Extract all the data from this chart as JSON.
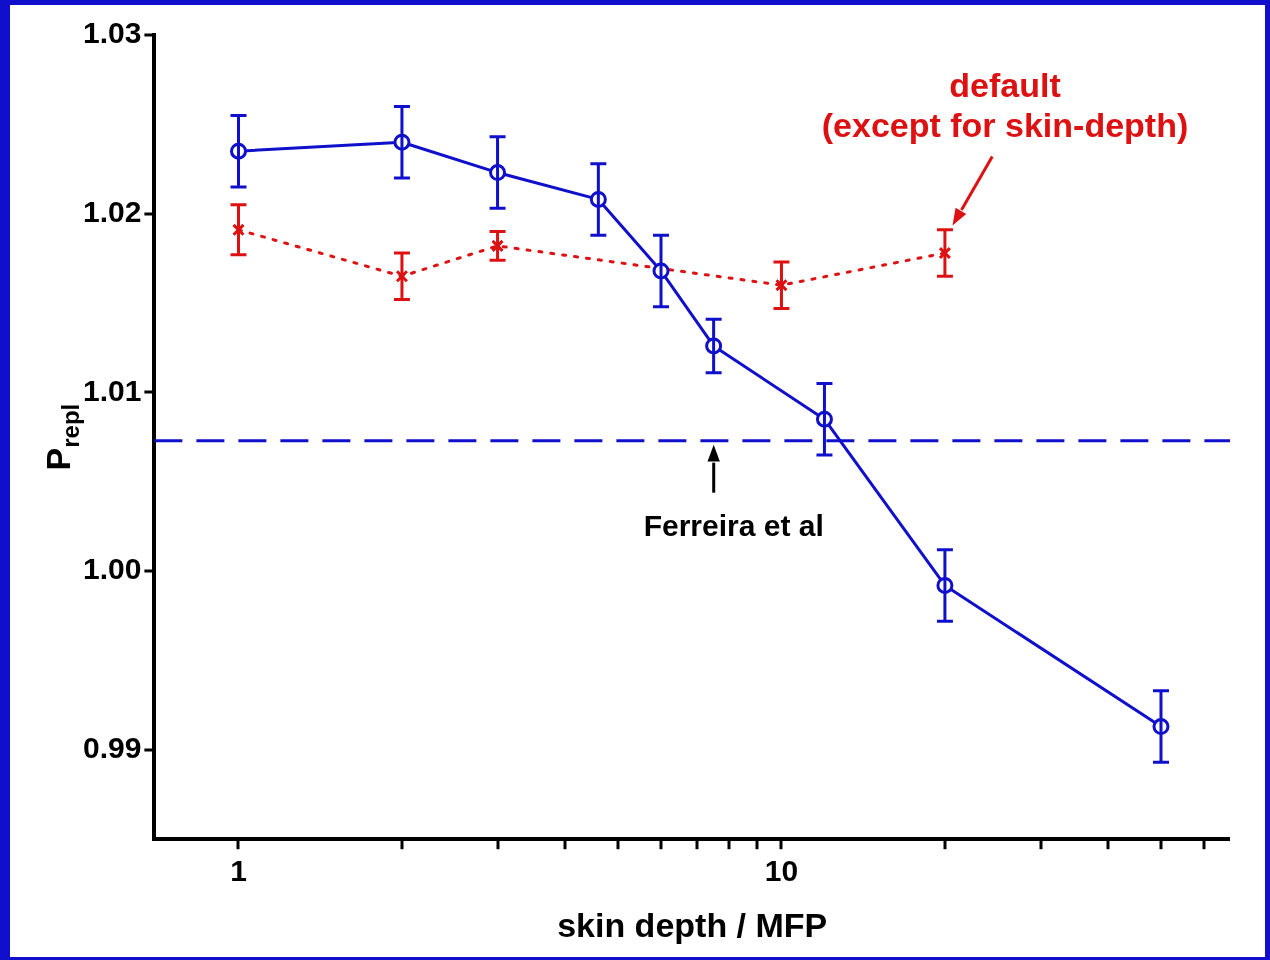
{
  "chart_data": {
    "type": "line",
    "xlabel": "skin depth / MFP",
    "ylabel": "P$_{repl}$",
    "log": "x",
    "xlim": [
      0.7,
      67
    ],
    "xticks": [
      {
        "value": 1,
        "label": "1"
      },
      {
        "value": 2,
        "label": null
      },
      {
        "value": 3,
        "label": null
      },
      {
        "value": 4,
        "label": null
      },
      {
        "value": 5,
        "label": null
      },
      {
        "value": 6,
        "label": null
      },
      {
        "value": 7,
        "label": null
      },
      {
        "value": 8,
        "label": null
      },
      {
        "value": 9,
        "label": null
      },
      {
        "value": 10,
        "label": "10"
      },
      {
        "value": 20,
        "label": null
      },
      {
        "value": 30,
        "label": null
      },
      {
        "value": 40,
        "label": null
      },
      {
        "value": 50,
        "label": null
      },
      {
        "value": 60,
        "label": null
      }
    ],
    "ylim": [
      0.985,
      1.03
    ],
    "yticks": [
      {
        "value": 0.99,
        "label": "0.99"
      },
      {
        "value": 1.0,
        "label": "1.00"
      },
      {
        "value": 1.01,
        "label": "1.01"
      },
      {
        "value": 1.02,
        "label": "1.02"
      },
      {
        "value": 1.03,
        "label": "1.03"
      }
    ],
    "grid": false,
    "legend": false,
    "series": [
      {
        "color": "#1010cc",
        "marker": "circle",
        "line_style": "solid",
        "x": [
          1,
          2,
          3,
          4.6,
          6,
          7.5,
          12,
          20,
          50
        ],
        "values": [
          1.0235,
          1.024,
          1.0223,
          1.0208,
          1.0168,
          1.0126,
          1.0085,
          0.9992,
          0.9913
        ],
        "errors": [
          0.002,
          0.002,
          0.002,
          0.002,
          0.002,
          0.0015,
          0.002,
          0.002,
          0.002
        ]
      },
      {
        "color": "#dd1111",
        "marker": "cross",
        "line_style": "dotted",
        "x": [
          1,
          2,
          3,
          10,
          20
        ],
        "values": [
          1.0191,
          1.0165,
          1.0182,
          1.016,
          1.0178
        ],
        "errors": [
          0.0014,
          0.0013,
          0.0008,
          0.0013,
          0.0013
        ]
      }
    ],
    "ref_lines": [
      {
        "axis": "y",
        "value": 1.0073,
        "label": "Ferreira et al",
        "color": "#1010cc",
        "line_style": "dashed"
      }
    ],
    "annotations": [
      "default (except for skin-depth)"
    ]
  }
}
